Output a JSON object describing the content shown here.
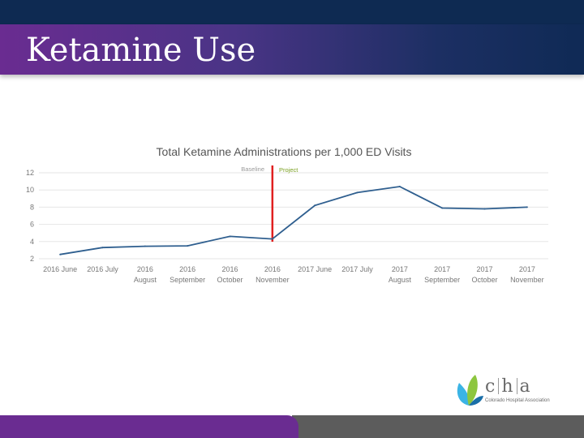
{
  "slide": {
    "title": "Ketamine Use"
  },
  "logo": {
    "letters": [
      "c",
      "h",
      "a"
    ],
    "tagline": "Colorado Hospital Association"
  },
  "chart_data": {
    "type": "line",
    "title": "Total Ketamine Administrations per 1,000 ED Visits",
    "categories": [
      [
        "2016 June"
      ],
      [
        "2016 July"
      ],
      [
        "2016",
        "August"
      ],
      [
        "2016",
        "September"
      ],
      [
        "2016",
        "October"
      ],
      [
        "2016",
        "November"
      ],
      [
        "2017 June"
      ],
      [
        "2017 July"
      ],
      [
        "2017",
        "August"
      ],
      [
        "2017",
        "September"
      ],
      [
        "2017",
        "October"
      ],
      [
        "2017",
        "November"
      ]
    ],
    "values": [
      2.5,
      3.3,
      3.45,
      3.5,
      4.6,
      4.3,
      8.2,
      9.7,
      10.4,
      7.9,
      7.8,
      8.0
    ],
    "ylim": [
      2,
      12
    ],
    "yticks": [
      2,
      4,
      6,
      8,
      10,
      12
    ],
    "grid": true,
    "line_color": "#2f5f8f",
    "annotations": {
      "baseline_label": "Baseline",
      "project_label": "Project",
      "marker_color": "#e02020",
      "project_color": "#7aa020"
    }
  }
}
